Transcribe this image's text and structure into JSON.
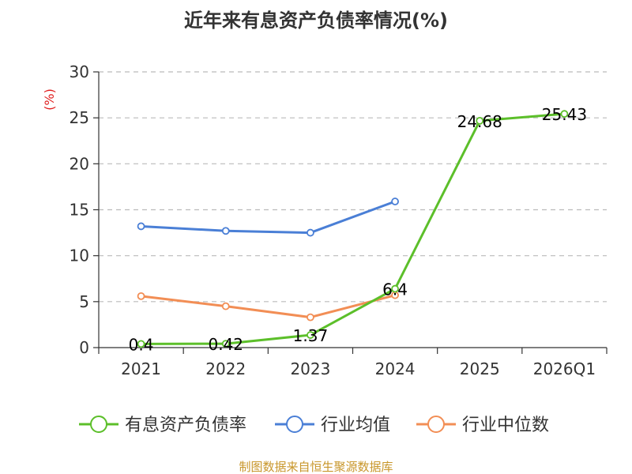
{
  "chart_data": {
    "type": "line",
    "title": "近年来有息资产负债率情况(%)",
    "ylabel": "(%)",
    "categories": [
      "2021",
      "2022",
      "2023",
      "2024",
      "2025",
      "2026Q1"
    ],
    "ylim": [
      0,
      30
    ],
    "yticks": [
      0,
      5,
      10,
      15,
      20,
      25,
      30
    ],
    "grid": true,
    "legend_position": "bottom",
    "series": [
      {
        "name": "有息资产负债率",
        "color": "#5cbf2a",
        "values": [
          0.4,
          0.42,
          1.37,
          6.4,
          24.68,
          25.43
        ],
        "labels": [
          "0.4",
          "0.42",
          "1.37",
          "6.4",
          "24.68",
          "25.43"
        ]
      },
      {
        "name": "行业均值",
        "color": "#4a7fd6",
        "values": [
          13.2,
          12.7,
          12.5,
          15.9,
          null,
          null
        ]
      },
      {
        "name": "行业中位数",
        "color": "#f28e55",
        "values": [
          5.6,
          4.5,
          3.3,
          5.7,
          null,
          null
        ]
      }
    ]
  },
  "source": "制图数据来自恒生聚源数据库"
}
